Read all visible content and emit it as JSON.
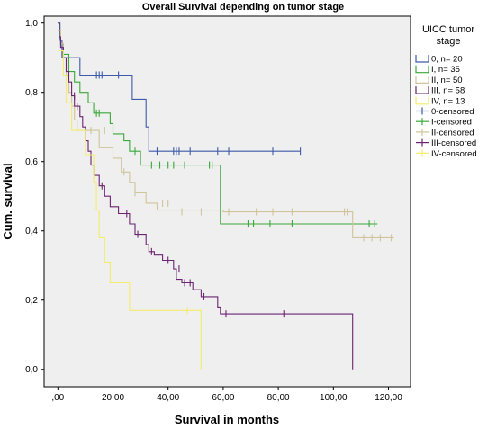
{
  "chart_data": {
    "type": "line",
    "step": true,
    "title": "Overall Survival depending on tumor stage",
    "xlabel": "Survival in months",
    "ylabel": "Cum. survival",
    "xlim": [
      -5,
      128
    ],
    "ylim": [
      -0.05,
      1.02
    ],
    "x_ticks": [
      0,
      20,
      40,
      60,
      80,
      100,
      120
    ],
    "x_tick_labels": [
      ",00",
      "20,00",
      "40,00",
      "60,00",
      "80,00",
      "100,00",
      "120,00"
    ],
    "y_ticks": [
      0,
      0.2,
      0.4,
      0.6,
      0.8,
      1.0
    ],
    "y_tick_labels": [
      "0,0",
      "0,2",
      "0,4",
      "0,6",
      "0,8",
      "1,0"
    ],
    "background": "#efefef",
    "legend": {
      "title_line1": "UICC tumor",
      "title_line2": "stage",
      "position": "right",
      "entries": [
        {
          "label": "0, n= 20",
          "kind": "line",
          "color": "#3d5ba8"
        },
        {
          "label": "I, n= 35",
          "kind": "line",
          "color": "#3aa83a"
        },
        {
          "label": "II, n= 50",
          "kind": "line",
          "color": "#cfc49a"
        },
        {
          "label": "III, n= 58",
          "kind": "line",
          "color": "#6b2470"
        },
        {
          "label": "IV, n= 13",
          "kind": "line",
          "color": "#f4ec6a"
        },
        {
          "label": "0-censored",
          "kind": "cross",
          "color": "#3d5ba8"
        },
        {
          "label": "I-censored",
          "kind": "cross",
          "color": "#3aa83a"
        },
        {
          "label": "II-censored",
          "kind": "cross",
          "color": "#cfc49a"
        },
        {
          "label": "III-censored",
          "kind": "cross",
          "color": "#6b2470"
        },
        {
          "label": "IV-censored",
          "kind": "cross",
          "color": "#f4ec6a"
        }
      ]
    },
    "series": [
      {
        "name": "0, n= 20",
        "color": "#3d5ba8",
        "steps": [
          [
            0,
            1.0
          ],
          [
            0.8,
            0.95
          ],
          [
            1.5,
            0.9
          ],
          [
            8,
            0.85
          ],
          [
            27,
            0.78
          ],
          [
            32,
            0.7
          ],
          [
            33,
            0.63
          ],
          [
            88,
            0.63
          ]
        ],
        "censored": [
          [
            14,
            0.85
          ],
          [
            15,
            0.85
          ],
          [
            16,
            0.85
          ],
          [
            22,
            0.85
          ],
          [
            36,
            0.63
          ],
          [
            42,
            0.63
          ],
          [
            43,
            0.63
          ],
          [
            44,
            0.63
          ],
          [
            48,
            0.63
          ],
          [
            58,
            0.63
          ],
          [
            62,
            0.63
          ],
          [
            78,
            0.63
          ],
          [
            88,
            0.63
          ]
        ]
      },
      {
        "name": "I, n= 35",
        "color": "#3aa83a",
        "steps": [
          [
            0,
            1.0
          ],
          [
            0.5,
            0.97
          ],
          [
            1,
            0.94
          ],
          [
            2,
            0.91
          ],
          [
            4,
            0.86
          ],
          [
            6,
            0.83
          ],
          [
            8,
            0.8
          ],
          [
            11,
            0.77
          ],
          [
            13,
            0.74
          ],
          [
            19,
            0.71
          ],
          [
            20,
            0.68
          ],
          [
            24,
            0.66
          ],
          [
            26,
            0.63
          ],
          [
            30,
            0.59
          ],
          [
            59,
            0.42
          ],
          [
            116,
            0.42
          ]
        ],
        "censored": [
          [
            14,
            0.74
          ],
          [
            15,
            0.74
          ],
          [
            28,
            0.63
          ],
          [
            34,
            0.59
          ],
          [
            37,
            0.59
          ],
          [
            40,
            0.59
          ],
          [
            42,
            0.59
          ],
          [
            46,
            0.59
          ],
          [
            55,
            0.59
          ],
          [
            56,
            0.59
          ],
          [
            69,
            0.42
          ],
          [
            71,
            0.42
          ],
          [
            77,
            0.42
          ],
          [
            85,
            0.42
          ],
          [
            113,
            0.42
          ],
          [
            115,
            0.42
          ]
        ]
      },
      {
        "name": "II, n= 50",
        "color": "#cfc49a",
        "steps": [
          [
            0,
            0.98
          ],
          [
            1,
            0.94
          ],
          [
            2,
            0.9
          ],
          [
            3,
            0.85
          ],
          [
            4,
            0.8
          ],
          [
            5,
            0.76
          ],
          [
            6,
            0.72
          ],
          [
            7,
            0.69
          ],
          [
            15,
            0.64
          ],
          [
            20,
            0.61
          ],
          [
            23,
            0.57
          ],
          [
            26,
            0.54
          ],
          [
            28,
            0.51
          ],
          [
            32,
            0.48
          ],
          [
            36,
            0.46
          ],
          [
            52,
            0.46
          ],
          [
            60,
            0.455
          ],
          [
            88,
            0.455
          ],
          [
            106,
            0.455
          ],
          [
            107,
            0.38
          ],
          [
            122,
            0.38
          ]
        ],
        "censored": [
          [
            12,
            0.69
          ],
          [
            17,
            0.69
          ],
          [
            24,
            0.57
          ],
          [
            28,
            0.51
          ],
          [
            38,
            0.48
          ],
          [
            40,
            0.48
          ],
          [
            45,
            0.455
          ],
          [
            52,
            0.455
          ],
          [
            62,
            0.455
          ],
          [
            72,
            0.455
          ],
          [
            78,
            0.455
          ],
          [
            85,
            0.455
          ],
          [
            104,
            0.455
          ],
          [
            105,
            0.455
          ],
          [
            111,
            0.38
          ],
          [
            114,
            0.38
          ],
          [
            117,
            0.38
          ],
          [
            121,
            0.38
          ]
        ]
      },
      {
        "name": "III, n= 58",
        "color": "#6b2470",
        "steps": [
          [
            0,
            1.0
          ],
          [
            0.5,
            0.96
          ],
          [
            1,
            0.93
          ],
          [
            2,
            0.9
          ],
          [
            3,
            0.86
          ],
          [
            4,
            0.83
          ],
          [
            5,
            0.79
          ],
          [
            6,
            0.76
          ],
          [
            8,
            0.73
          ],
          [
            9,
            0.7
          ],
          [
            10,
            0.66
          ],
          [
            11,
            0.63
          ],
          [
            12,
            0.59
          ],
          [
            13,
            0.56
          ],
          [
            15,
            0.53
          ],
          [
            17,
            0.5
          ],
          [
            19,
            0.47
          ],
          [
            22,
            0.45
          ],
          [
            26,
            0.42
          ],
          [
            28,
            0.39
          ],
          [
            32,
            0.36
          ],
          [
            33,
            0.34
          ],
          [
            35,
            0.33
          ],
          [
            38,
            0.315
          ],
          [
            42,
            0.29
          ],
          [
            43,
            0.26
          ],
          [
            45,
            0.25
          ],
          [
            49,
            0.23
          ],
          [
            52,
            0.21
          ],
          [
            58,
            0.18
          ],
          [
            59,
            0.16
          ],
          [
            107,
            0.0
          ]
        ],
        "censored": [
          [
            6,
            0.79
          ],
          [
            7,
            0.76
          ],
          [
            16,
            0.53
          ],
          [
            25,
            0.45
          ],
          [
            29,
            0.39
          ],
          [
            34,
            0.34
          ],
          [
            40,
            0.315
          ],
          [
            44,
            0.29
          ],
          [
            46,
            0.25
          ],
          [
            48,
            0.25
          ],
          [
            53,
            0.21
          ],
          [
            61,
            0.16
          ],
          [
            82,
            0.16
          ]
        ]
      },
      {
        "name": "IV, n= 13",
        "color": "#f4ec6a",
        "steps": [
          [
            0,
            0.92
          ],
          [
            2,
            0.85
          ],
          [
            3,
            0.77
          ],
          [
            5,
            0.69
          ],
          [
            10,
            0.62
          ],
          [
            13,
            0.54
          ],
          [
            14,
            0.46
          ],
          [
            15,
            0.38
          ],
          [
            17,
            0.31
          ],
          [
            19,
            0.25
          ],
          [
            26,
            0.17
          ],
          [
            52,
            0.0
          ]
        ],
        "censored": [
          [
            47,
            0.17
          ]
        ]
      }
    ]
  }
}
